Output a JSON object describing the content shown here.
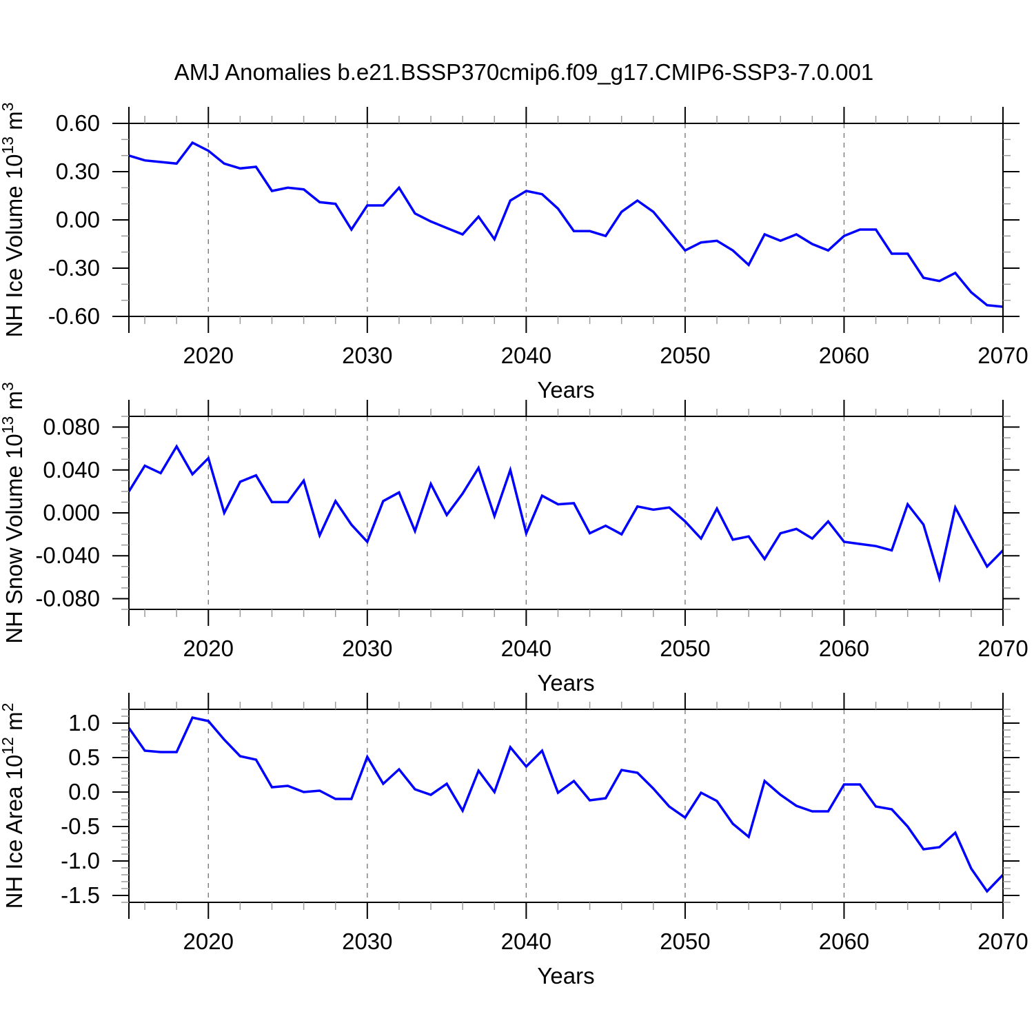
{
  "title": "AMJ Anomalies b.e21.BSSP370cmip6.f09_g17.CMIP6-SSP3-7.0.001",
  "colors": {
    "line": "#0000ff",
    "grid": "#7a7a7a",
    "axis": "#000000",
    "minor_tick": "#9a9a9a",
    "background": "#ffffff"
  },
  "chart_data": [
    {
      "type": "line",
      "title": "",
      "xlabel": "Years",
      "ylabel_parts": [
        {
          "t": "NH Ice Volume 10"
        },
        {
          "t": "13",
          "sup": true
        },
        {
          "t": " m"
        },
        {
          "t": "3",
          "sup": true
        }
      ],
      "xlim": [
        2015,
        2070
      ],
      "ylim": [
        -0.6,
        0.6
      ],
      "grid": "x-dashed",
      "legend": "none",
      "grid_x": [
        2020,
        2030,
        2040,
        2050,
        2060
      ],
      "xticks": [
        {
          "v": 2020,
          "label": "2020"
        },
        {
          "v": 2030,
          "label": "2030"
        },
        {
          "v": 2040,
          "label": "2040"
        },
        {
          "v": 2050,
          "label": "2050"
        },
        {
          "v": 2060,
          "label": "2060"
        },
        {
          "v": 2070,
          "label": "2070"
        }
      ],
      "xminor_step": 2,
      "yticks": [
        {
          "v": 0.6,
          "label": "0.60"
        },
        {
          "v": 0.3,
          "label": "0.30"
        },
        {
          "v": 0.0,
          "label": "0.00"
        },
        {
          "v": -0.3,
          "label": "-0.30"
        },
        {
          "v": -0.6,
          "label": "-0.60"
        }
      ],
      "yminor_step": 0.1,
      "x": [
        2015,
        2016,
        2017,
        2018,
        2019,
        2020,
        2021,
        2022,
        2023,
        2024,
        2025,
        2026,
        2027,
        2028,
        2029,
        2030,
        2031,
        2032,
        2033,
        2034,
        2035,
        2036,
        2037,
        2038,
        2039,
        2040,
        2041,
        2042,
        2043,
        2044,
        2045,
        2046,
        2047,
        2048,
        2049,
        2050,
        2051,
        2052,
        2053,
        2054,
        2055,
        2056,
        2057,
        2058,
        2059,
        2060,
        2061,
        2062,
        2063,
        2064,
        2065,
        2066,
        2067,
        2068,
        2069,
        2070
      ],
      "y": [
        0.4,
        0.37,
        0.36,
        0.35,
        0.48,
        0.43,
        0.35,
        0.32,
        0.33,
        0.18,
        0.2,
        0.19,
        0.11,
        0.1,
        -0.06,
        0.09,
        0.09,
        0.2,
        0.04,
        -0.01,
        -0.05,
        -0.09,
        0.02,
        -0.12,
        0.12,
        0.18,
        0.16,
        0.07,
        -0.07,
        -0.07,
        -0.1,
        0.05,
        0.12,
        0.05,
        -0.07,
        -0.19,
        -0.14,
        -0.13,
        -0.19,
        -0.28,
        -0.09,
        -0.13,
        -0.09,
        -0.15,
        -0.19,
        -0.1,
        -0.06,
        -0.06,
        -0.21,
        -0.21,
        -0.36,
        -0.38,
        -0.33,
        -0.45,
        -0.53,
        -0.54
      ]
    },
    {
      "type": "line",
      "title": "",
      "xlabel": "Years",
      "ylabel_parts": [
        {
          "t": "NH Snow Volume 10"
        },
        {
          "t": "13",
          "sup": true
        },
        {
          "t": " m"
        },
        {
          "t": "3",
          "sup": true
        }
      ],
      "xlim": [
        2015,
        2070
      ],
      "ylim": [
        -0.09,
        0.09
      ],
      "grid": "x-dashed",
      "legend": "none",
      "grid_x": [
        2020,
        2030,
        2040,
        2050,
        2060
      ],
      "xticks": [
        {
          "v": 2020,
          "label": "2020"
        },
        {
          "v": 2030,
          "label": "2030"
        },
        {
          "v": 2040,
          "label": "2040"
        },
        {
          "v": 2050,
          "label": "2050"
        },
        {
          "v": 2060,
          "label": "2060"
        },
        {
          "v": 2070,
          "label": "2070"
        }
      ],
      "xminor_step": 2,
      "yticks": [
        {
          "v": 0.08,
          "label": "0.080"
        },
        {
          "v": 0.04,
          "label": "0.040"
        },
        {
          "v": 0.0,
          "label": "0.000"
        },
        {
          "v": -0.04,
          "label": "-0.040"
        },
        {
          "v": -0.08,
          "label": "-0.080"
        }
      ],
      "yminor_step": 0.01,
      "x": [
        2015,
        2016,
        2017,
        2018,
        2019,
        2020,
        2021,
        2022,
        2023,
        2024,
        2025,
        2026,
        2027,
        2028,
        2029,
        2030,
        2031,
        2032,
        2033,
        2034,
        2035,
        2036,
        2037,
        2038,
        2039,
        2040,
        2041,
        2042,
        2043,
        2044,
        2045,
        2046,
        2047,
        2048,
        2049,
        2050,
        2051,
        2052,
        2053,
        2054,
        2055,
        2056,
        2057,
        2058,
        2059,
        2060,
        2061,
        2062,
        2063,
        2064,
        2065,
        2066,
        2067,
        2068,
        2069,
        2070
      ],
      "y": [
        0.02,
        0.044,
        0.037,
        0.062,
        0.036,
        0.051,
        0.0,
        0.029,
        0.035,
        0.01,
        0.01,
        0.03,
        -0.021,
        0.011,
        -0.011,
        -0.027,
        0.011,
        0.019,
        -0.017,
        0.027,
        -0.002,
        0.018,
        0.042,
        -0.003,
        0.04,
        -0.019,
        0.016,
        0.008,
        0.009,
        -0.019,
        -0.012,
        -0.02,
        0.006,
        0.003,
        0.005,
        -0.008,
        -0.024,
        0.004,
        -0.025,
        -0.022,
        -0.043,
        -0.019,
        -0.015,
        -0.024,
        -0.008,
        -0.027,
        -0.029,
        -0.031,
        -0.035,
        0.008,
        -0.011,
        -0.061,
        0.005,
        -0.023,
        -0.05,
        -0.035
      ]
    },
    {
      "type": "line",
      "title": "",
      "xlabel": "Years",
      "ylabel_parts": [
        {
          "t": "NH Ice Area 10"
        },
        {
          "t": "12",
          "sup": true
        },
        {
          "t": " m"
        },
        {
          "t": "2",
          "sup": true
        }
      ],
      "xlim": [
        2015,
        2070
      ],
      "ylim": [
        -1.6,
        1.2
      ],
      "grid": "x-dashed",
      "legend": "none",
      "grid_x": [
        2020,
        2030,
        2040,
        2050,
        2060
      ],
      "xticks": [
        {
          "v": 2020,
          "label": "2020"
        },
        {
          "v": 2030,
          "label": "2030"
        },
        {
          "v": 2040,
          "label": "2040"
        },
        {
          "v": 2050,
          "label": "2050"
        },
        {
          "v": 2060,
          "label": "2060"
        },
        {
          "v": 2070,
          "label": "2070"
        }
      ],
      "xminor_step": 2,
      "yticks": [
        {
          "v": 1.0,
          "label": "1.0"
        },
        {
          "v": 0.5,
          "label": "0.5"
        },
        {
          "v": 0.0,
          "label": "0.0"
        },
        {
          "v": -0.5,
          "label": "-0.5"
        },
        {
          "v": -1.0,
          "label": "-1.0"
        },
        {
          "v": -1.5,
          "label": "-1.5"
        }
      ],
      "yminor_step": 0.1,
      "x": [
        2015,
        2016,
        2017,
        2018,
        2019,
        2020,
        2021,
        2022,
        2023,
        2024,
        2025,
        2026,
        2027,
        2028,
        2029,
        2030,
        2031,
        2032,
        2033,
        2034,
        2035,
        2036,
        2037,
        2038,
        2039,
        2040,
        2041,
        2042,
        2043,
        2044,
        2045,
        2046,
        2047,
        2048,
        2049,
        2050,
        2051,
        2052,
        2053,
        2054,
        2055,
        2056,
        2057,
        2058,
        2059,
        2060,
        2061,
        2062,
        2063,
        2064,
        2065,
        2066,
        2067,
        2068,
        2069,
        2070
      ],
      "y": [
        0.93,
        0.6,
        0.58,
        0.58,
        1.08,
        1.03,
        0.76,
        0.52,
        0.47,
        0.07,
        0.09,
        0.0,
        0.02,
        -0.1,
        -0.1,
        0.51,
        0.12,
        0.33,
        0.04,
        -0.04,
        0.12,
        -0.27,
        0.31,
        0.0,
        0.65,
        0.37,
        0.6,
        -0.01,
        0.16,
        -0.12,
        -0.09,
        0.32,
        0.28,
        0.05,
        -0.21,
        -0.37,
        -0.01,
        -0.13,
        -0.46,
        -0.65,
        0.16,
        -0.04,
        -0.2,
        -0.28,
        -0.28,
        0.11,
        0.11,
        -0.21,
        -0.25,
        -0.5,
        -0.83,
        -0.8,
        -0.59,
        -1.11,
        -1.44,
        -1.2
      ]
    }
  ]
}
